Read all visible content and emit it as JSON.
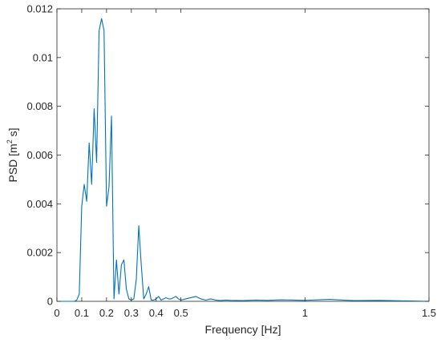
{
  "chart_data": {
    "type": "line",
    "title": "",
    "xlabel": "Frequency [Hz]",
    "ylabel_parts": {
      "base": "PSD [m",
      "sup": "2",
      "tail": " s]"
    },
    "xlim": [
      0,
      1.5
    ],
    "ylim": [
      0,
      0.012
    ],
    "grid": false,
    "legend": "none",
    "x_ticks": [
      0,
      0.1,
      0.2,
      0.3,
      0.4,
      0.5,
      1,
      1.5
    ],
    "x_tick_labels": [
      "0",
      "0.1",
      "0.2",
      "0.3",
      "0.4",
      "0.5",
      "1",
      "1.5"
    ],
    "y_ticks": [
      0,
      0.002,
      0.004,
      0.006,
      0.008,
      0.01,
      0.012
    ],
    "y_tick_labels": [
      "0",
      "0.002",
      "0.004",
      "0.006",
      "0.008",
      "0.01",
      "0.012"
    ],
    "series": [
      {
        "color": "#0072bd",
        "x": [
          0,
          0.07,
          0.08,
          0.09,
          0.1,
          0.11,
          0.12,
          0.13,
          0.14,
          0.15,
          0.16,
          0.17,
          0.18,
          0.19,
          0.2,
          0.21,
          0.22,
          0.23,
          0.24,
          0.25,
          0.26,
          0.27,
          0.28,
          0.29,
          0.3,
          0.31,
          0.32,
          0.33,
          0.34,
          0.35,
          0.36,
          0.37,
          0.38,
          0.39,
          0.4,
          0.41,
          0.42,
          0.43,
          0.44,
          0.45,
          0.46,
          0.47,
          0.48,
          0.49,
          0.5,
          0.52,
          0.54,
          0.56,
          0.58,
          0.6,
          0.62,
          0.64,
          0.66,
          0.68,
          0.7,
          0.75,
          0.8,
          0.85,
          0.9,
          0.95,
          1.0,
          1.05,
          1.1,
          1.15,
          1.2,
          1.3,
          1.4,
          1.5
        ],
        "y": [
          0,
          0,
          5e-05,
          0.0003,
          0.0039,
          0.0048,
          0.0041,
          0.0065,
          0.0048,
          0.0079,
          0.0057,
          0.0111,
          0.0116,
          0.0111,
          0.0039,
          0.0047,
          0.0076,
          0.0001,
          0.0017,
          0.0003,
          0.0015,
          0.0017,
          0.0005,
          0.0001,
          5e-05,
          0.0001,
          0.0009,
          0.0031,
          0.0015,
          0.0001,
          0.0003,
          0.0006,
          5e-05,
          5e-05,
          0.0001,
          0.0002,
          5e-05,
          0.0001,
          0.00015,
          0.0001,
          0.0001,
          0.00015,
          0.0002,
          0.0001,
          5e-05,
          0.0001,
          0.00015,
          0.0002,
          0.0001,
          5e-05,
          0.0001,
          5e-05,
          3e-05,
          5e-05,
          4e-05,
          3e-05,
          5e-05,
          4e-05,
          6e-05,
          5e-05,
          4e-05,
          6e-05,
          8e-05,
          5e-05,
          3e-05,
          4e-05,
          2e-05,
          0
        ]
      }
    ]
  }
}
